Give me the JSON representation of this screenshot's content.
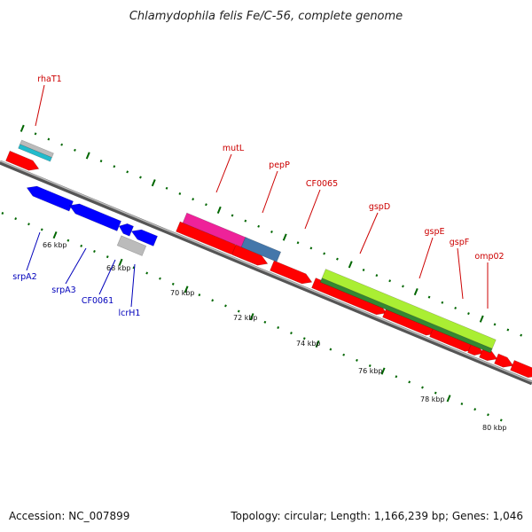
{
  "title": "Chlamydophila felis Fe/C-56, complete genome",
  "accession": "Accession: NC_007899",
  "summary": "Topology: circular; Length: 1,166,239 bp; Genes: 1,046",
  "colors": {
    "forward_label": "#cc0000",
    "reverse_label": "#0000bb",
    "cds": "#ff0000",
    "reverse_cds": "#0000ff",
    "backbone": "#888888",
    "tick": "#006600",
    "pink": "#ee2299",
    "steelblue": "#4477aa",
    "lime": "#aaee33",
    "darkgreen": "#338833",
    "gray": "#bbbbbb",
    "cyan": "#22bbcc"
  },
  "tick_labels": [
    "66 kbp",
    "68 kbp",
    "70 kbp",
    "72 kbp",
    "74 kbp",
    "76 kbp",
    "78 kbp",
    "80 kbp"
  ],
  "forward_labels": [
    "rhaT1",
    "mutL",
    "pepP",
    "CF0065",
    "gspD",
    "gspE",
    "gspF",
    "omp02"
  ],
  "reverse_labels": [
    "srpA2",
    "srpA3",
    "CF0061",
    "lcrH1"
  ]
}
